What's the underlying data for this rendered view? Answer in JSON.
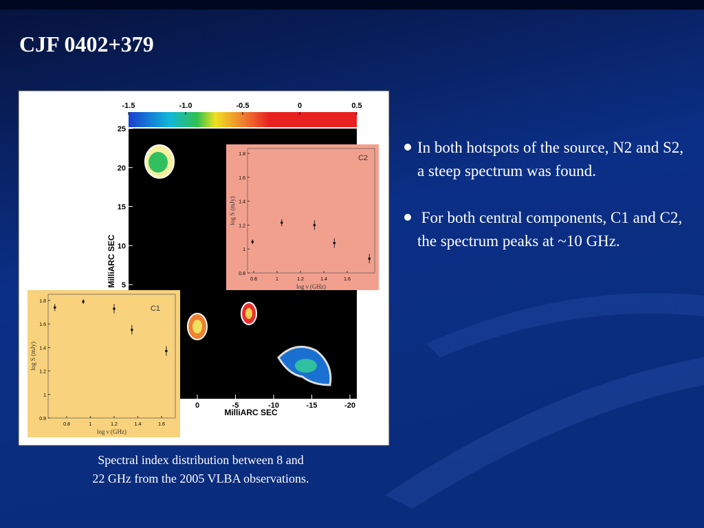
{
  "title": "CJF 0402+379",
  "bullets": [
    "In both hotspots of the source, N2 and S2, a steep spectrum was found.",
    " For both central components, C1 and C2, the spectrum peaks at ~10 GHz."
  ],
  "caption": [
    "Spectral index distribution between 8 and",
    "22 GHz from the 2005 VLBA observations."
  ],
  "figure": {
    "colorbar_ticks": [
      {
        "value": -1.5,
        "label": "-1.5"
      },
      {
        "value": -1.0,
        "label": "-1.0"
      },
      {
        "value": -0.5,
        "label": "-0.5"
      },
      0,
      0.5
    ],
    "x_label": "MilliARC SEC",
    "y_label": "MilliARC SEC",
    "xticks": [
      0,
      -5,
      -10,
      -15,
      -20
    ],
    "yticks": [
      25,
      20,
      15,
      10,
      5
    ],
    "insets": [
      {
        "label": "C2",
        "x_label": "log ν (GHz)",
        "y_label": "log S (mJy)",
        "xticks": [
          0.8,
          1,
          1.2,
          1.4,
          1.6
        ],
        "yticks": [
          0.8,
          1,
          1.2,
          1.4,
          1.6,
          1.8
        ],
        "x": [
          0.79,
          1.04,
          1.32,
          1.49,
          1.79
        ],
        "values": [
          1.06,
          1.22,
          1.2,
          1.05,
          0.92
        ],
        "errors": [
          0.02,
          0.03,
          0.04,
          0.04,
          0.04
        ]
      },
      {
        "label": "C1",
        "x_label": "log ν (GHz)",
        "y_label": "log S (mJy)",
        "xticks": [
          0.8,
          1,
          1.2,
          1.4,
          1.6
        ],
        "yticks": [
          0.8,
          1,
          1.2,
          1.4,
          1.6,
          1.8
        ],
        "x": [
          0.7,
          0.94,
          1.2,
          1.35,
          1.64
        ],
        "values": [
          1.74,
          1.79,
          1.73,
          1.55,
          1.37
        ],
        "errors": [
          0.03,
          0.02,
          0.04,
          0.04,
          0.04
        ]
      }
    ]
  }
}
